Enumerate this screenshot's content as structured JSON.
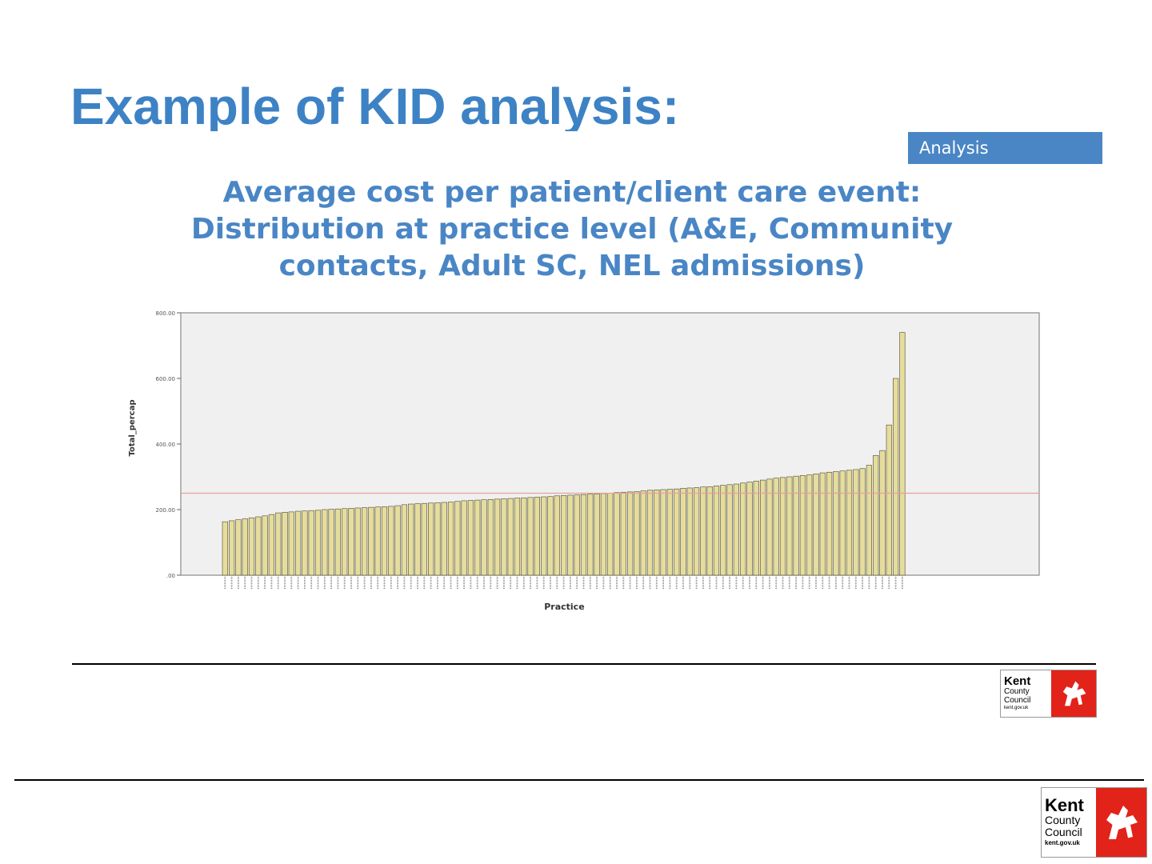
{
  "slide": {
    "title": "Example of KID analysis:",
    "tag": "Analysis",
    "heading_lines": [
      "Average cost per patient/client care event:",
      "Distribution at practice level (A&E, Community",
      "contacts, Adult SC, NEL admissions)"
    ]
  },
  "logo": {
    "line1": "Kent",
    "line2": "County",
    "line3": "Council",
    "line4": "kent.gov.uk",
    "colors": {
      "red": "#e2231a"
    }
  },
  "colors": {
    "title": "#3d82c4",
    "tag_bg": "#4a86c5",
    "bar_fill": "#e6dc9c",
    "bar_stroke": "#4a4a30",
    "reference_line": "#e8a0a0",
    "plot_bg": "#f0f0f0"
  },
  "chart_data": {
    "type": "bar",
    "xlabel": "Practice",
    "ylabel": "Total_percap",
    "ylim": [
      0,
      800
    ],
    "yticks": [
      0,
      200,
      400,
      600,
      800
    ],
    "ytick_labels": [
      ".00",
      "200.00",
      "400.00",
      "600.00",
      "800.00"
    ],
    "reference_line": 250,
    "values": [
      163,
      166,
      169,
      172,
      175,
      178,
      181,
      185,
      190,
      192,
      193,
      195,
      196,
      197,
      198,
      200,
      201,
      202,
      203,
      204,
      205,
      206,
      207,
      208,
      209,
      210,
      212,
      215,
      217,
      218,
      219,
      220,
      221,
      222,
      223,
      225,
      227,
      228,
      229,
      230,
      231,
      232,
      233,
      234,
      235,
      236,
      237,
      238,
      239,
      240,
      242,
      243,
      244,
      245,
      246,
      247,
      248,
      249,
      250,
      252,
      253,
      254,
      255,
      257,
      259,
      260,
      261,
      262,
      263,
      265,
      266,
      267,
      269,
      270,
      272,
      274,
      276,
      278,
      281,
      284,
      287,
      290,
      293,
      296,
      298,
      300,
      302,
      304,
      306,
      309,
      312,
      314,
      316,
      318,
      320,
      322,
      325,
      335,
      365,
      380,
      458,
      600,
      740
    ]
  }
}
